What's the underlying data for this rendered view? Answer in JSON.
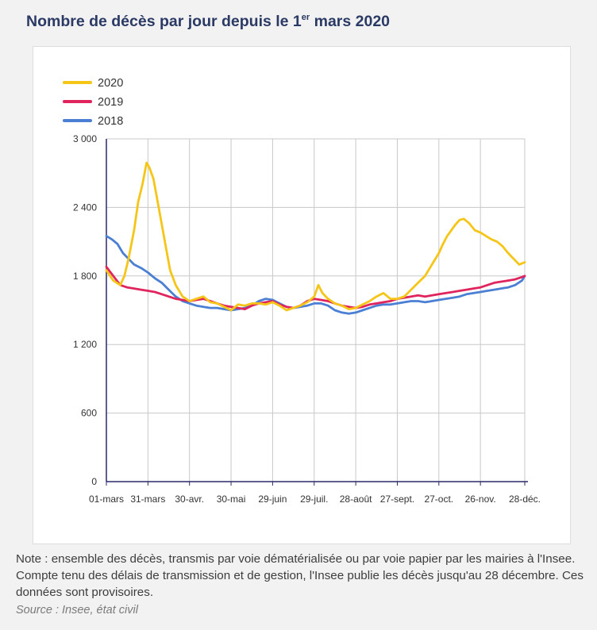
{
  "header": {
    "title_pre": "Nombre de décès par jour depuis le 1",
    "title_sup": "er",
    "title_post": " mars 2020"
  },
  "footer": {
    "note": "Note : ensemble des décès, transmis par voie dématérialisée ou par voie papier par les mairies à l'Insee. Compte tenu des délais de transmission et de gestion, l'Insee publie les décès jusqu'au 28 décembre. Ces données sont provisoires.",
    "source": "Source : Insee, état civil"
  },
  "chart_data": {
    "type": "line",
    "title": "Nombre de décès par jour depuis le 1er mars 2020",
    "xlabel": "",
    "ylabel": "",
    "x_tick_labels": [
      "01-mars",
      "31-mars",
      "30-avr.",
      "30-mai",
      "29-juin",
      "29-juil.",
      "28-août",
      "27-sept.",
      "27-oct.",
      "26-nov.",
      "28-déc."
    ],
    "x_tick_days": [
      0,
      30,
      60,
      90,
      120,
      150,
      180,
      210,
      240,
      270,
      302
    ],
    "y_ticks": [
      0,
      600,
      1200,
      1800,
      2400,
      3000
    ],
    "y_tick_labels": [
      "0",
      "600",
      "1 200",
      "1 800",
      "2 400",
      "3 000"
    ],
    "xlim": [
      0,
      302
    ],
    "ylim": [
      0,
      3000
    ],
    "grid": true,
    "legend_position": "top-left",
    "series": [
      {
        "name": "2020",
        "color": "#f5c518",
        "points": [
          [
            0,
            1850
          ],
          [
            5,
            1760
          ],
          [
            10,
            1720
          ],
          [
            13,
            1800
          ],
          [
            16,
            1950
          ],
          [
            20,
            2200
          ],
          [
            23,
            2450
          ],
          [
            26,
            2600
          ],
          [
            29,
            2790
          ],
          [
            31,
            2750
          ],
          [
            34,
            2650
          ],
          [
            37,
            2450
          ],
          [
            40,
            2250
          ],
          [
            43,
            2050
          ],
          [
            46,
            1850
          ],
          [
            50,
            1720
          ],
          [
            55,
            1620
          ],
          [
            60,
            1580
          ],
          [
            65,
            1600
          ],
          [
            70,
            1620
          ],
          [
            75,
            1570
          ],
          [
            80,
            1560
          ],
          [
            85,
            1530
          ],
          [
            90,
            1500
          ],
          [
            95,
            1550
          ],
          [
            100,
            1540
          ],
          [
            105,
            1560
          ],
          [
            110,
            1560
          ],
          [
            115,
            1550
          ],
          [
            120,
            1570
          ],
          [
            125,
            1540
          ],
          [
            130,
            1500
          ],
          [
            135,
            1520
          ],
          [
            140,
            1540
          ],
          [
            145,
            1570
          ],
          [
            150,
            1620
          ],
          [
            153,
            1720
          ],
          [
            156,
            1650
          ],
          [
            160,
            1600
          ],
          [
            165,
            1560
          ],
          [
            170,
            1540
          ],
          [
            175,
            1510
          ],
          [
            180,
            1520
          ],
          [
            185,
            1550
          ],
          [
            190,
            1580
          ],
          [
            195,
            1620
          ],
          [
            200,
            1650
          ],
          [
            205,
            1600
          ],
          [
            210,
            1600
          ],
          [
            215,
            1620
          ],
          [
            220,
            1680
          ],
          [
            225,
            1740
          ],
          [
            230,
            1800
          ],
          [
            235,
            1900
          ],
          [
            240,
            2000
          ],
          [
            243,
            2080
          ],
          [
            246,
            2150
          ],
          [
            249,
            2200
          ],
          [
            252,
            2250
          ],
          [
            255,
            2290
          ],
          [
            258,
            2300
          ],
          [
            262,
            2260
          ],
          [
            266,
            2200
          ],
          [
            270,
            2180
          ],
          [
            274,
            2150
          ],
          [
            278,
            2120
          ],
          [
            282,
            2100
          ],
          [
            286,
            2060
          ],
          [
            290,
            2000
          ],
          [
            294,
            1950
          ],
          [
            298,
            1900
          ],
          [
            302,
            1920
          ]
        ]
      },
      {
        "name": "2019",
        "color": "#e0245e",
        "points": [
          [
            0,
            1880
          ],
          [
            5,
            1800
          ],
          [
            10,
            1720
          ],
          [
            15,
            1700
          ],
          [
            20,
            1690
          ],
          [
            25,
            1680
          ],
          [
            30,
            1670
          ],
          [
            35,
            1660
          ],
          [
            40,
            1640
          ],
          [
            45,
            1620
          ],
          [
            50,
            1600
          ],
          [
            55,
            1590
          ],
          [
            60,
            1580
          ],
          [
            65,
            1590
          ],
          [
            70,
            1600
          ],
          [
            75,
            1580
          ],
          [
            80,
            1560
          ],
          [
            85,
            1540
          ],
          [
            90,
            1530
          ],
          [
            95,
            1520
          ],
          [
            100,
            1510
          ],
          [
            105,
            1540
          ],
          [
            110,
            1560
          ],
          [
            115,
            1570
          ],
          [
            120,
            1580
          ],
          [
            125,
            1550
          ],
          [
            130,
            1530
          ],
          [
            135,
            1520
          ],
          [
            140,
            1540
          ],
          [
            145,
            1580
          ],
          [
            150,
            1600
          ],
          [
            155,
            1590
          ],
          [
            160,
            1580
          ],
          [
            165,
            1560
          ],
          [
            170,
            1540
          ],
          [
            175,
            1530
          ],
          [
            180,
            1520
          ],
          [
            185,
            1530
          ],
          [
            190,
            1550
          ],
          [
            195,
            1560
          ],
          [
            200,
            1570
          ],
          [
            205,
            1580
          ],
          [
            210,
            1600
          ],
          [
            215,
            1610
          ],
          [
            220,
            1620
          ],
          [
            225,
            1630
          ],
          [
            230,
            1620
          ],
          [
            235,
            1630
          ],
          [
            240,
            1640
          ],
          [
            245,
            1650
          ],
          [
            250,
            1660
          ],
          [
            255,
            1670
          ],
          [
            260,
            1680
          ],
          [
            265,
            1690
          ],
          [
            270,
            1700
          ],
          [
            275,
            1720
          ],
          [
            280,
            1740
          ],
          [
            285,
            1750
          ],
          [
            290,
            1760
          ],
          [
            295,
            1770
          ],
          [
            300,
            1790
          ],
          [
            302,
            1800
          ]
        ]
      },
      {
        "name": "2018",
        "color": "#4a7fd4",
        "points": [
          [
            0,
            2150
          ],
          [
            4,
            2120
          ],
          [
            8,
            2080
          ],
          [
            12,
            2000
          ],
          [
            16,
            1950
          ],
          [
            20,
            1900
          ],
          [
            25,
            1870
          ],
          [
            30,
            1830
          ],
          [
            35,
            1780
          ],
          [
            40,
            1740
          ],
          [
            45,
            1680
          ],
          [
            50,
            1620
          ],
          [
            55,
            1580
          ],
          [
            60,
            1560
          ],
          [
            65,
            1540
          ],
          [
            70,
            1530
          ],
          [
            75,
            1520
          ],
          [
            80,
            1520
          ],
          [
            85,
            1510
          ],
          [
            90,
            1500
          ],
          [
            95,
            1510
          ],
          [
            100,
            1520
          ],
          [
            105,
            1540
          ],
          [
            110,
            1580
          ],
          [
            115,
            1600
          ],
          [
            120,
            1590
          ],
          [
            125,
            1560
          ],
          [
            130,
            1530
          ],
          [
            135,
            1520
          ],
          [
            140,
            1530
          ],
          [
            145,
            1540
          ],
          [
            150,
            1560
          ],
          [
            155,
            1560
          ],
          [
            160,
            1540
          ],
          [
            165,
            1500
          ],
          [
            170,
            1480
          ],
          [
            175,
            1470
          ],
          [
            180,
            1480
          ],
          [
            185,
            1500
          ],
          [
            190,
            1520
          ],
          [
            195,
            1540
          ],
          [
            200,
            1550
          ],
          [
            205,
            1550
          ],
          [
            210,
            1560
          ],
          [
            215,
            1570
          ],
          [
            220,
            1580
          ],
          [
            225,
            1580
          ],
          [
            230,
            1570
          ],
          [
            235,
            1580
          ],
          [
            240,
            1590
          ],
          [
            245,
            1600
          ],
          [
            250,
            1610
          ],
          [
            255,
            1620
          ],
          [
            260,
            1640
          ],
          [
            265,
            1650
          ],
          [
            270,
            1660
          ],
          [
            275,
            1670
          ],
          [
            280,
            1680
          ],
          [
            285,
            1690
          ],
          [
            290,
            1700
          ],
          [
            295,
            1720
          ],
          [
            300,
            1760
          ],
          [
            302,
            1800
          ]
        ]
      }
    ]
  }
}
